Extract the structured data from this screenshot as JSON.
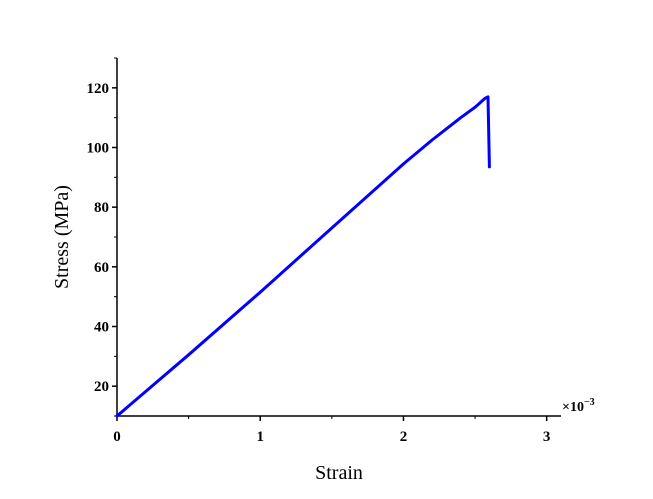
{
  "chart_data": {
    "type": "line",
    "xlabel": "Strain",
    "ylabel": "Stress (MPa)",
    "x_multiplier_label": "×10",
    "x_multiplier_exponent": "−3",
    "xlim": [
      0,
      3.1
    ],
    "ylim": [
      10,
      130
    ],
    "x_ticks": [
      "0",
      "1",
      "2",
      "3"
    ],
    "x_tick_values": [
      0,
      1,
      2,
      3
    ],
    "y_ticks": [
      "20",
      "40",
      "60",
      "80",
      "100",
      "120"
    ],
    "y_tick_values": [
      20,
      40,
      60,
      80,
      100,
      120
    ],
    "grid": false,
    "line_color": "#0000ff",
    "series": [
      {
        "x": [
          0,
          0.5,
          1.0,
          1.5,
          2.0,
          2.2,
          2.4,
          2.5,
          2.57,
          2.59,
          2.6
        ],
        "y": [
          10,
          30.5,
          51.5,
          73,
          94.5,
          102.5,
          110,
          113.5,
          116.5,
          117,
          93.5
        ]
      }
    ]
  }
}
